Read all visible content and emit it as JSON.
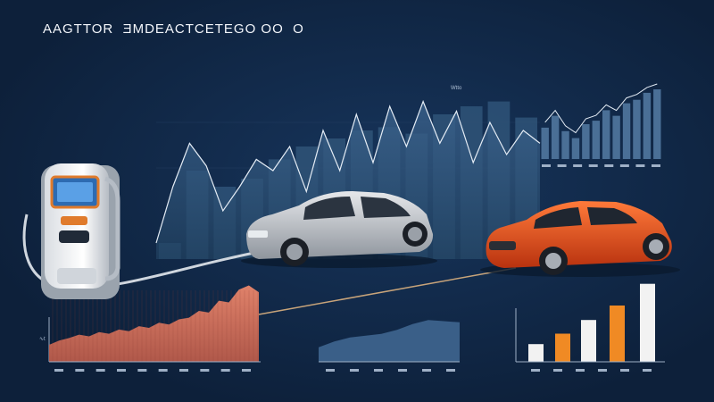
{
  "header": {
    "title": "AAGTTOR  ƎMDEACTCETEGO OO  O"
  },
  "labels": {
    "peak_tag": "Wtto",
    "mini_y_tick": "∿t"
  },
  "colors": {
    "background": "#0f2440",
    "background_glow": "#17355c",
    "accent_orange": "#f08a24",
    "car_red": "#e24a1c",
    "car_silver": "#c9ccd1",
    "chart_blue": "#34587e",
    "bar_white": "#f2f2f2",
    "area_coral": "#d8775a"
  },
  "icons": {
    "charger": "ev-charging-station-icon",
    "silver_car": "silver-sedan-icon",
    "red_car": "red-sports-car-icon",
    "cable": "charging-cable-icon"
  },
  "chart_data": [
    {
      "type": "area",
      "name": "central-wave-area",
      "values": [
        0.1,
        0.45,
        0.72,
        0.58,
        0.3,
        0.45,
        0.62,
        0.55,
        0.7,
        0.42,
        0.8,
        0.55,
        0.9,
        0.6,
        0.95,
        0.7,
        0.98,
        0.72,
        0.92,
        0.6,
        0.85,
        0.65,
        0.8,
        0.72
      ],
      "bars": [
        0.1,
        0.55,
        0.45,
        0.5,
        0.62,
        0.7,
        0.75,
        0.8,
        0.82,
        0.78,
        0.9,
        0.95,
        0.98,
        0.88
      ]
    },
    {
      "type": "bar",
      "name": "top-right-mini-bars",
      "values": [
        0.45,
        0.62,
        0.4,
        0.3,
        0.5,
        0.55,
        0.7,
        0.62,
        0.8,
        0.85,
        0.95,
        1.0
      ]
    },
    {
      "type": "area",
      "name": "bottom-left-coral-area",
      "values": [
        0.2,
        0.25,
        0.28,
        0.32,
        0.3,
        0.35,
        0.33,
        0.38,
        0.36,
        0.42,
        0.4,
        0.46,
        0.44,
        0.5,
        0.52,
        0.6,
        0.58,
        0.72,
        0.7,
        0.85,
        0.9,
        0.82
      ]
    },
    {
      "type": "area",
      "name": "bottom-center-blue-area",
      "values": [
        0.25,
        0.35,
        0.42,
        0.45,
        0.48,
        0.55,
        0.65,
        0.72,
        0.7,
        0.68
      ]
    },
    {
      "type": "bar",
      "name": "bottom-right-bars",
      "values": [
        0.22,
        0.35,
        0.52,
        0.4,
        0.7,
        0.62,
        0.97
      ],
      "colors": [
        "#f2f2f2",
        "#f08a24",
        "#f2f2f2",
        "#f08a24",
        "#f08a24",
        "#f2f2f2",
        "#f2f2f2"
      ]
    }
  ]
}
